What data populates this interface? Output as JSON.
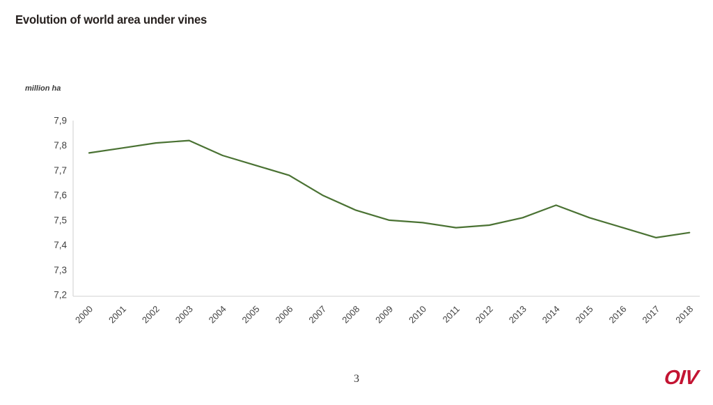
{
  "header": {
    "title": "Evolution of world area under vines"
  },
  "footer": {
    "page_number": "3",
    "logo_text": "OIV"
  },
  "colors": {
    "line": "#4a7233",
    "axis": "#d9d9d9",
    "tick_text": "#404040",
    "logo_red": "#c31432"
  },
  "chart_data": {
    "type": "line",
    "title": "Evolution of world area under vines",
    "xlabel": "",
    "ylabel": "million ha",
    "categories": [
      2000,
      2001,
      2002,
      2003,
      2004,
      2005,
      2006,
      2007,
      2008,
      2009,
      2010,
      2011,
      2012,
      2013,
      2014,
      2015,
      2016,
      2017,
      2018
    ],
    "series": [
      {
        "name": "World area under vines (million ha)",
        "values": [
          7.77,
          7.79,
          7.81,
          7.82,
          7.76,
          7.72,
          7.68,
          7.6,
          7.54,
          7.5,
          7.49,
          7.47,
          7.48,
          7.51,
          7.56,
          7.51,
          7.47,
          7.43,
          7.45
        ]
      }
    ],
    "ylim": [
      7.2,
      7.9
    ],
    "y_ticks": [
      7.9,
      7.8,
      7.7,
      7.6,
      7.5,
      7.4,
      7.3,
      7.2
    ],
    "y_tick_labels": [
      "7,9",
      "7,8",
      "7,7",
      "7,6",
      "7,5",
      "7,4",
      "7,3",
      "7,2"
    ],
    "grid": false,
    "legend_position": "none"
  }
}
